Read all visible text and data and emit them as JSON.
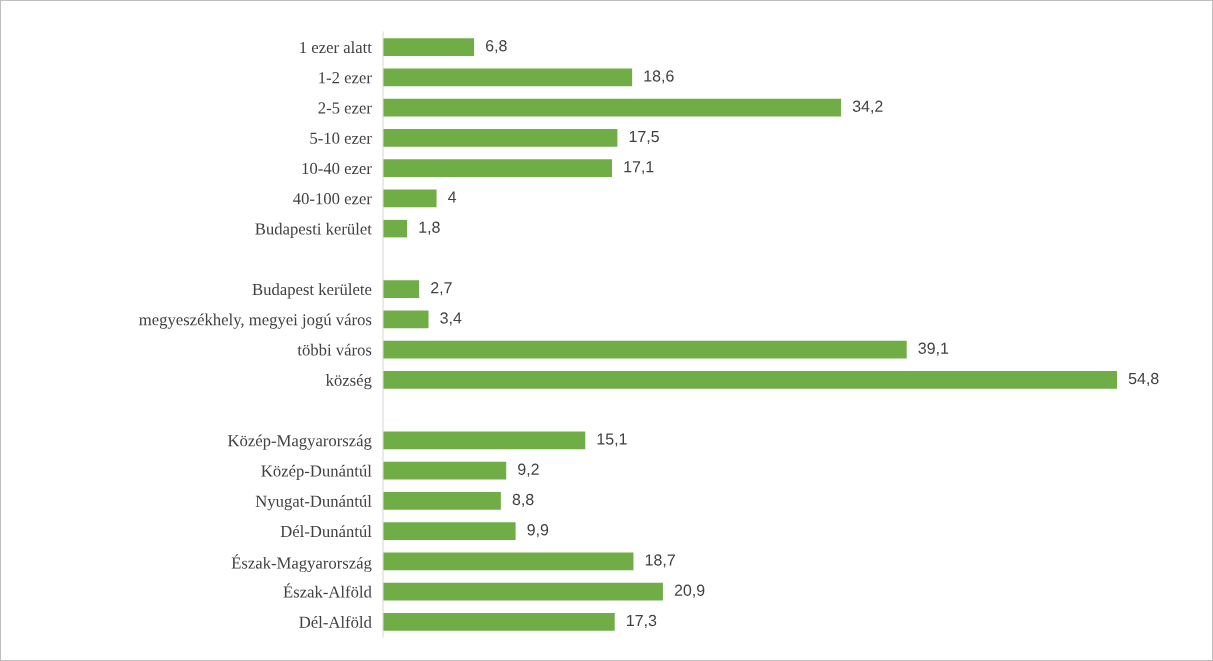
{
  "chart_data": {
    "type": "bar",
    "orientation": "horizontal",
    "color": "#70ad47",
    "categories": [
      "1 ezer alatt",
      "1-2 ezer",
      "2-5 ezer",
      "5-10 ezer",
      "10-40 ezer",
      "40-100 ezer",
      "Budapesti kerület",
      null,
      "Budapest kerülete",
      "megyeszékhely, megyei jogú város",
      "többi város",
      "község",
      null,
      "Közép-Magyarország",
      "Közép-Dunántúl",
      "Nyugat-Dunántúl",
      "Dél-Dunántúl",
      "Észak-Magyarország",
      "Észak-Alföld",
      "Dél-Alföld"
    ],
    "values": [
      6.8,
      18.6,
      34.2,
      17.5,
      17.1,
      4,
      1.8,
      null,
      2.7,
      3.4,
      39.1,
      54.8,
      null,
      15.1,
      9.2,
      8.8,
      9.9,
      18.7,
      20.9,
      17.3
    ],
    "value_labels": [
      "6,8",
      "18,6",
      "34,2",
      "17,5",
      "17,1",
      "4",
      "1,8",
      null,
      "2,7",
      "3,4",
      "39,1",
      "54,8",
      null,
      "15,1",
      "9,2",
      "8,8",
      "9,9",
      "18,7",
      "20,9",
      "17,3"
    ],
    "grid": false,
    "legend": false
  }
}
